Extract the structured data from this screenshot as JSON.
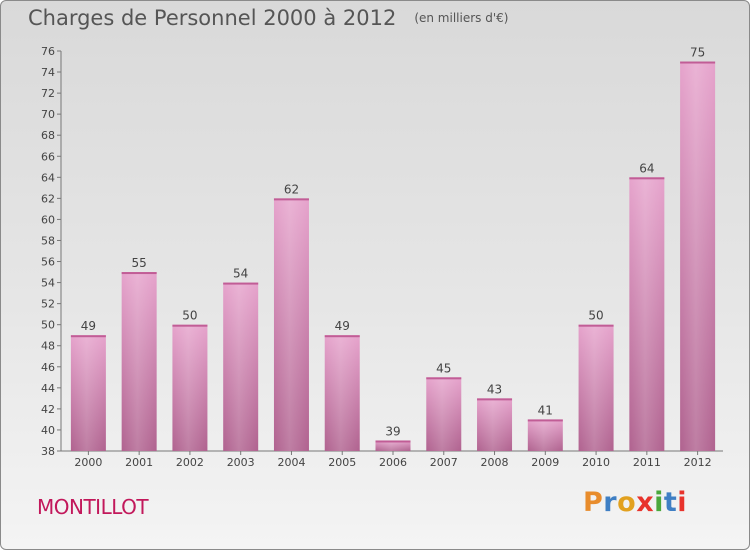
{
  "chart_data": {
    "type": "bar",
    "title": "Charges de Personnel 2000 à 2012",
    "subtitle": "(en milliers d'€)",
    "categories": [
      "2000",
      "2001",
      "2002",
      "2003",
      "2004",
      "2005",
      "2006",
      "2007",
      "2008",
      "2009",
      "2010",
      "2011",
      "2012"
    ],
    "values": [
      49,
      55,
      50,
      54,
      62,
      49,
      39,
      45,
      43,
      41,
      50,
      64,
      75
    ],
    "ylim": [
      38,
      76
    ],
    "yticks": [
      38,
      40,
      42,
      44,
      46,
      48,
      50,
      52,
      54,
      56,
      58,
      60,
      62,
      64,
      66,
      68,
      70,
      72,
      74,
      76
    ],
    "xlabel": "",
    "ylabel": "",
    "grid": false,
    "bar_color": "#d27eb0"
  },
  "footer": {
    "commune": "MONTILLOT",
    "brand": "Proxiti",
    "brand_colors": [
      "#e88c2c",
      "#3f7fc4",
      "#e2a11f",
      "#e8332c",
      "#4aa83c",
      "#3f7fc4",
      "#e8332c"
    ]
  }
}
